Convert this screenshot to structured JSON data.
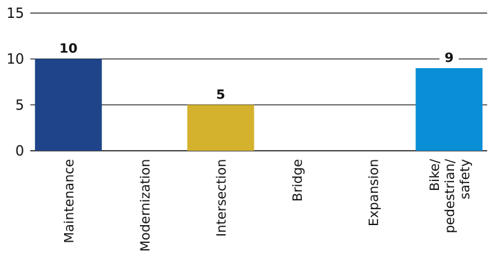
{
  "chart_data": {
    "type": "bar",
    "title": "",
    "xlabel": "",
    "ylabel": "",
    "ylim": [
      0,
      15
    ],
    "yticks": [
      0,
      5,
      10,
      15
    ],
    "grid": true,
    "categories": [
      [
        "Maintenance"
      ],
      [
        "Modernization"
      ],
      [
        "Intersection"
      ],
      [
        "Bridge"
      ],
      [
        "Expansion"
      ],
      [
        "Bike/",
        "pedestrian/",
        "safety"
      ]
    ],
    "values": [
      10,
      0,
      5,
      0,
      0,
      9
    ],
    "data_labels": [
      "10",
      "",
      "5",
      "",
      "",
      "9"
    ],
    "colors": [
      "#1f448a",
      "#1f448a",
      "#d4b22e",
      "#d4b22e",
      "#d4b22e",
      "#0a8fd6"
    ]
  }
}
